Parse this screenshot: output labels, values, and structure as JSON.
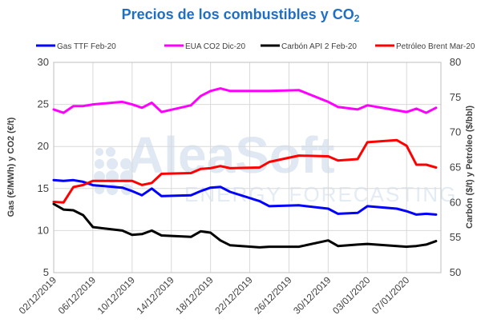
{
  "title": {
    "main": "Precios de los combustibles y CO",
    "sub": "2"
  },
  "watermark": {
    "brand": "AleaSoft",
    "tagline": "ENERGY FORECASTING"
  },
  "colors": {
    "gas": "#0000ff",
    "eua": "#ff00ff",
    "carbon": "#000000",
    "brent": "#ff0000",
    "grid": "#d9d9d9",
    "title": "#1f6fc5",
    "watermark": "#dfe8f3"
  },
  "chart_data": {
    "type": "line",
    "title": "Precios de los combustibles y CO2",
    "x": [
      "02/12/2019",
      "03/12/2019",
      "04/12/2019",
      "05/12/2019",
      "06/12/2019",
      "09/12/2019",
      "10/12/2019",
      "11/12/2019",
      "12/12/2019",
      "13/12/2019",
      "16/12/2019",
      "17/12/2019",
      "18/12/2019",
      "19/12/2019",
      "20/12/2019",
      "23/12/2019",
      "24/12/2019",
      "27/12/2019",
      "30/12/2019",
      "31/12/2019",
      "02/01/2020",
      "03/01/2020",
      "06/01/2020",
      "07/01/2020",
      "08/01/2020",
      "09/01/2020",
      "10/01/2020"
    ],
    "x_days": [
      0,
      1,
      2,
      3,
      4,
      7,
      8,
      9,
      10,
      11,
      14,
      15,
      16,
      17,
      18,
      21,
      22,
      25,
      28,
      29,
      31,
      32,
      35,
      36,
      37,
      38,
      39
    ],
    "xticks": [
      "02/12/2019",
      "06/12/2019",
      "10/12/2019",
      "14/12/2019",
      "18/12/2019",
      "22/12/2019",
      "26/12/2019",
      "30/12/2019",
      "03/01/2020",
      "07/01/2020"
    ],
    "xtick_days": [
      0,
      4,
      8,
      12,
      16,
      20,
      24,
      28,
      32,
      36
    ],
    "y_left": {
      "label": "Gas (€/MWh) y CO2 (€/t)",
      "lim": [
        5,
        30
      ],
      "ticks": [
        5,
        10,
        15,
        20,
        25,
        30
      ]
    },
    "y_right": {
      "label": "Carbón ($/t) y Petróleo ($/bbl)",
      "lim": [
        50,
        80
      ],
      "ticks": [
        50,
        55,
        60,
        65,
        70,
        75,
        80
      ]
    },
    "grid": true,
    "legend_position": "top",
    "series": [
      {
        "name": "Gas TTF Feb-20",
        "axis": "left",
        "color": "#0000ff",
        "values": [
          16.0,
          15.9,
          16.0,
          15.8,
          15.4,
          15.1,
          14.7,
          14.2,
          15.0,
          14.1,
          14.2,
          14.7,
          15.1,
          15.2,
          14.6,
          13.5,
          12.9,
          13.0,
          12.6,
          12.0,
          12.1,
          12.9,
          12.6,
          12.3,
          11.9,
          12.0,
          11.9
        ]
      },
      {
        "name": "EUA CO2 Dic-20",
        "axis": "left",
        "color": "#ff00ff",
        "values": [
          24.4,
          24.0,
          24.8,
          24.8,
          25.0,
          25.3,
          25.0,
          24.6,
          25.2,
          24.1,
          24.9,
          26.0,
          26.6,
          26.9,
          26.6,
          26.6,
          26.6,
          26.7,
          25.3,
          24.7,
          24.4,
          24.9,
          24.3,
          24.1,
          24.5,
          24.0,
          24.6
        ]
      },
      {
        "name": "Carbón API 2 Feb-20",
        "axis": "right",
        "color": "#000000",
        "values": [
          59.8,
          59.0,
          58.9,
          58.2,
          56.5,
          56.0,
          55.4,
          55.5,
          56.0,
          55.3,
          55.1,
          55.9,
          55.7,
          54.6,
          53.9,
          53.6,
          53.7,
          53.7,
          54.6,
          53.8,
          54.0,
          54.1,
          53.8,
          53.7,
          53.8,
          54.0,
          54.5
        ]
      },
      {
        "name": "Petróleo Brent Mar-20",
        "axis": "right",
        "color": "#ff0000",
        "values": [
          60.1,
          60.0,
          62.2,
          62.5,
          63.1,
          63.1,
          63.1,
          62.5,
          62.8,
          64.1,
          64.2,
          64.8,
          64.9,
          65.2,
          64.9,
          65.0,
          65.8,
          66.7,
          66.6,
          66.0,
          66.2,
          68.6,
          68.9,
          68.1,
          65.4,
          65.4,
          65.0
        ]
      }
    ]
  }
}
